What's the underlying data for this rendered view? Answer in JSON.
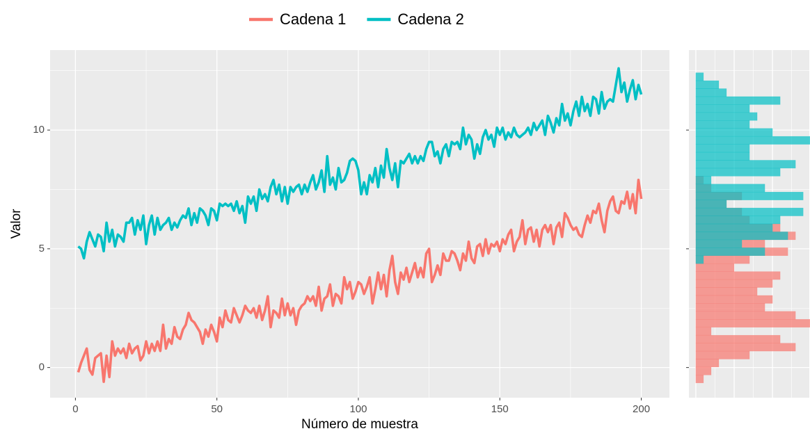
{
  "chart_data": [
    {
      "type": "line",
      "x_label": "Número de muestra",
      "y_label": "Valor",
      "x": [
        1,
        2,
        3,
        4,
        5,
        6,
        7,
        8,
        9,
        10,
        11,
        12,
        13,
        14,
        15,
        16,
        17,
        18,
        19,
        20,
        21,
        22,
        23,
        24,
        25,
        26,
        27,
        28,
        29,
        30,
        31,
        32,
        33,
        34,
        35,
        36,
        37,
        38,
        39,
        40,
        41,
        42,
        43,
        44,
        45,
        46,
        47,
        48,
        49,
        50,
        51,
        52,
        53,
        54,
        55,
        56,
        57,
        58,
        59,
        60,
        61,
        62,
        63,
        64,
        65,
        66,
        67,
        68,
        69,
        70,
        71,
        72,
        73,
        74,
        75,
        76,
        77,
        78,
        79,
        80,
        81,
        82,
        83,
        84,
        85,
        86,
        87,
        88,
        89,
        90,
        91,
        92,
        93,
        94,
        95,
        96,
        97,
        98,
        99,
        100,
        101,
        102,
        103,
        104,
        105,
        106,
        107,
        108,
        109,
        110,
        111,
        112,
        113,
        114,
        115,
        116,
        117,
        118,
        119,
        120,
        121,
        122,
        123,
        124,
        125,
        126,
        127,
        128,
        129,
        130,
        131,
        132,
        133,
        134,
        135,
        136,
        137,
        138,
        139,
        140,
        141,
        142,
        143,
        144,
        145,
        146,
        147,
        148,
        149,
        150,
        151,
        152,
        153,
        154,
        155,
        156,
        157,
        158,
        159,
        160,
        161,
        162,
        163,
        164,
        165,
        166,
        167,
        168,
        169,
        170,
        171,
        172,
        173,
        174,
        175,
        176,
        177,
        178,
        179,
        180,
        181,
        182,
        183,
        184,
        185,
        186,
        187,
        188,
        189,
        190,
        191,
        192,
        193,
        194,
        195,
        196,
        197,
        198,
        199,
        200
      ],
      "series": [
        {
          "name": "Cadena 1",
          "color": "#F8766D",
          "values": [
            -0.2,
            0.2,
            0.5,
            0.8,
            -0.1,
            -0.3,
            0.4,
            0.5,
            0.6,
            -0.6,
            0.5,
            -0.4,
            1.1,
            0.5,
            0.8,
            0.6,
            0.8,
            0.4,
            1.0,
            0.6,
            0.8,
            0.9,
            0.3,
            0.5,
            1.1,
            0.6,
            1.0,
            0.7,
            1.1,
            0.7,
            1.8,
            0.8,
            1.2,
            1.0,
            1.7,
            1.3,
            1.2,
            1.6,
            1.8,
            2.3,
            2.0,
            1.9,
            1.7,
            1.5,
            1.0,
            1.6,
            1.3,
            1.8,
            1.5,
            1.1,
            2.1,
            1.7,
            2.4,
            2.0,
            1.9,
            2.5,
            2.2,
            1.9,
            2.2,
            2.6,
            2.4,
            2.3,
            2.5,
            2.1,
            2.6,
            2.0,
            2.4,
            3.0,
            1.7,
            2.4,
            2.3,
            2.1,
            2.9,
            2.2,
            2.7,
            2.2,
            2.5,
            1.8,
            2.4,
            2.6,
            2.7,
            3.0,
            2.8,
            3.0,
            2.6,
            3.4,
            2.4,
            2.9,
            3.0,
            3.5,
            2.6,
            3.1,
            3.0,
            2.7,
            3.8,
            3.3,
            3.6,
            2.9,
            3.2,
            3.6,
            3.5,
            3.1,
            3.4,
            3.8,
            2.7,
            3.3,
            4.0,
            3.3,
            3.9,
            3.0,
            4.1,
            4.7,
            3.6,
            3.1,
            4.0,
            3.7,
            4.2,
            3.6,
            4.0,
            4.4,
            3.8,
            4.2,
            3.8,
            4.8,
            5.0,
            3.6,
            3.9,
            4.3,
            3.9,
            4.8,
            4.5,
            4.5,
            4.9,
            4.8,
            4.5,
            4.1,
            4.8,
            4.5,
            5.3,
            4.6,
            4.4,
            5.1,
            5.2,
            4.7,
            5.4,
            4.8,
            5.2,
            5.1,
            5.3,
            4.9,
            5.4,
            5.2,
            5.6,
            5.8,
            4.9,
            5.3,
            5.5,
            6.2,
            5.2,
            5.8,
            5.9,
            5.3,
            5.8,
            5.1,
            5.8,
            6.0,
            5.7,
            6.0,
            5.2,
            5.9,
            6.1,
            5.5,
            6.5,
            6.3,
            6.0,
            5.8,
            5.9,
            5.6,
            5.5,
            6.0,
            6.4,
            6.1,
            6.6,
            6.5,
            6.9,
            6.2,
            5.7,
            6.6,
            7.0,
            7.2,
            6.6,
            6.5,
            7.0,
            6.9,
            7.4,
            6.7,
            7.3,
            6.5,
            7.9,
            7.1
          ]
        },
        {
          "name": "Cadena 2",
          "color": "#00BFC4",
          "values": [
            5.1,
            5.0,
            4.6,
            5.3,
            5.7,
            5.4,
            5.1,
            5.6,
            5.5,
            4.9,
            6.1,
            5.3,
            5.8,
            5.1,
            5.6,
            5.5,
            5.3,
            6.1,
            6.1,
            6.3,
            5.6,
            6.2,
            5.8,
            6.4,
            5.2,
            6.0,
            6.4,
            5.6,
            6.3,
            5.8,
            6.0,
            6.1,
            6.3,
            5.8,
            6.1,
            5.9,
            6.2,
            6.4,
            6.3,
            6.7,
            6.0,
            6.5,
            6.1,
            6.7,
            6.6,
            6.4,
            6.0,
            6.7,
            6.6,
            6.2,
            6.9,
            6.8,
            6.9,
            6.8,
            6.9,
            6.6,
            7.0,
            6.5,
            6.8,
            6.1,
            7.2,
            6.9,
            7.2,
            6.6,
            7.5,
            7.1,
            7.3,
            7.0,
            7.6,
            7.9,
            7.3,
            7.7,
            7.0,
            7.6,
            6.9,
            7.6,
            7.4,
            7.6,
            7.7,
            7.3,
            7.7,
            7.4,
            7.8,
            8.1,
            7.5,
            7.8,
            8.3,
            7.4,
            8.9,
            7.7,
            8.0,
            7.5,
            8.4,
            7.8,
            7.9,
            8.2,
            8.7,
            8.8,
            8.7,
            8.3,
            7.3,
            7.8,
            7.3,
            8.1,
            7.8,
            8.4,
            7.6,
            8.5,
            8.0,
            9.2,
            8.4,
            7.9,
            8.6,
            7.6,
            8.7,
            8.6,
            8.8,
            9.0,
            8.6,
            8.9,
            8.6,
            8.9,
            8.7,
            9.2,
            9.5,
            9.5,
            8.9,
            9.1,
            8.6,
            9.2,
            9.4,
            8.9,
            9.5,
            9.4,
            9.5,
            9.2,
            10.1,
            9.4,
            9.8,
            9.6,
            8.8,
            9.4,
            9.0,
            9.7,
            10.0,
            9.6,
            9.8,
            9.3,
            10.1,
            9.8,
            10.1,
            9.6,
            9.9,
            9.7,
            10.1,
            9.8,
            9.7,
            9.8,
            9.9,
            10.1,
            9.8,
            10.3,
            10.0,
            10.2,
            10.4,
            9.8,
            10.6,
            10.3,
            9.9,
            10.5,
            10.2,
            11.1,
            10.4,
            10.7,
            10.2,
            10.8,
            11.2,
            10.6,
            11.4,
            10.8,
            11.1,
            10.6,
            11.4,
            11.3,
            10.7,
            11.6,
            10.9,
            11.2,
            11.3,
            11.2,
            11.9,
            12.6,
            11.6,
            12.0,
            11.2,
            11.7,
            12.1,
            11.3,
            11.9,
            11.5
          ]
        }
      ],
      "xlim": [
        -8.95,
        209.95
      ],
      "ylim": [
        -1.27,
        13.37
      ],
      "xticks": [
        0,
        50,
        100,
        150,
        200
      ],
      "yticks": [
        0,
        5,
        10
      ],
      "xminor": [
        25,
        75,
        125,
        175
      ],
      "yminor": [
        2.5,
        7.5,
        12.5
      ],
      "grid": true,
      "legend": "top"
    },
    {
      "type": "histogram",
      "orientation": "horizontal",
      "bins": [
        -0.65,
        -0.315,
        0.02,
        0.355,
        0.69,
        1.025,
        1.36,
        1.695,
        2.03,
        2.365,
        2.7,
        3.035,
        3.37,
        3.705,
        4.04,
        4.375,
        4.71,
        5.045,
        5.38,
        5.715,
        6.05,
        6.385,
        6.72,
        7.055,
        7.39,
        7.725,
        8.06,
        8.395,
        8.73,
        9.065,
        9.4,
        9.735,
        10.07,
        10.405,
        10.74,
        11.075,
        11.41,
        11.745,
        12.08,
        12.415,
        12.75
      ],
      "series": [
        {
          "color": "#F8766D",
          "values": [
            1,
            2,
            3,
            7,
            13,
            11,
            2,
            15,
            13,
            9,
            10,
            8,
            10,
            11,
            5,
            7,
            12,
            9,
            13,
            11,
            7,
            6,
            4,
            6,
            2,
            1,
            0,
            0,
            0,
            0,
            0,
            0,
            0,
            0,
            0,
            0,
            0,
            0,
            0,
            0
          ]
        },
        {
          "color": "#00BFC4",
          "values": [
            0,
            0,
            0,
            0,
            0,
            0,
            0,
            0,
            0,
            0,
            0,
            0,
            0,
            0,
            0,
            1,
            9,
            6,
            12,
            10,
            11,
            14,
            4,
            14,
            9,
            2,
            11,
            13,
            7,
            7,
            15,
            10,
            7,
            8,
            7,
            11,
            4,
            3,
            1,
            0
          ]
        }
      ],
      "opacity": 0.7,
      "xlim": [
        -0.9,
        14.8
      ],
      "ylim": [
        -1.27,
        13.37
      ],
      "xgrid": [
        0,
        5,
        10
      ],
      "xminor": [
        2.5,
        7.5,
        12.5
      ],
      "yticks": [
        0,
        5,
        10
      ],
      "yminor": [
        2.5,
        7.5,
        12.5
      ],
      "grid": true
    }
  ]
}
